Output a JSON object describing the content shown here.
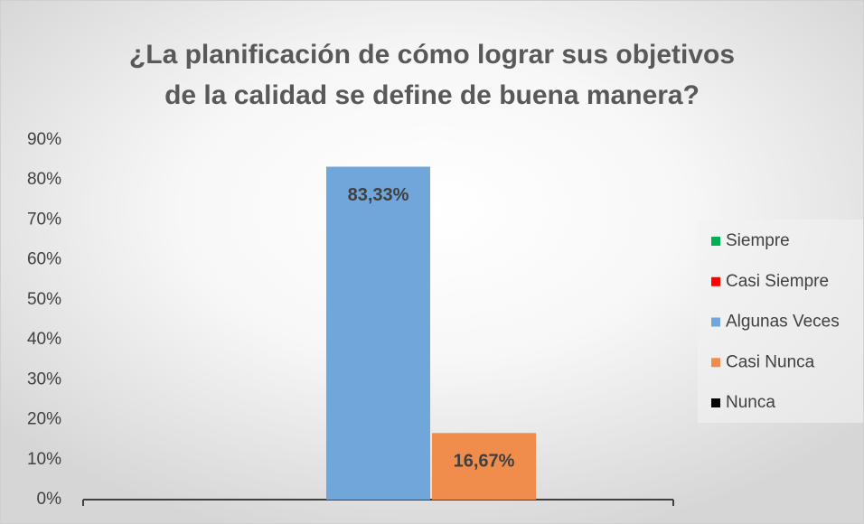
{
  "chart_data": {
    "type": "bar",
    "title": "¿La planificación de cómo lograr sus objetivos de la calidad se define de buena manera?",
    "categories": [
      null
    ],
    "series": [
      {
        "name": "Siempre",
        "color": "#00b050",
        "values": [
          0
        ]
      },
      {
        "name": "Casi Siempre",
        "color": "#ff0000",
        "values": [
          0
        ]
      },
      {
        "name": "Algunas Veces",
        "color": "#71a6db",
        "values": [
          83.33
        ],
        "value_labels": [
          "83,33%"
        ]
      },
      {
        "name": "Casi Nunca",
        "color": "#f08d4c",
        "values": [
          16.67
        ],
        "value_labels": [
          "16,67%"
        ]
      },
      {
        "name": "Nunca",
        "color": "#000000",
        "values": [
          0
        ]
      }
    ],
    "ylim": [
      0,
      90
    ],
    "yticks": [
      {
        "value": 0,
        "label": "0%"
      },
      {
        "value": 10,
        "label": "10%"
      },
      {
        "value": 20,
        "label": "20%"
      },
      {
        "value": 30,
        "label": "30%"
      },
      {
        "value": 40,
        "label": "40%"
      },
      {
        "value": 50,
        "label": "50%"
      },
      {
        "value": 60,
        "label": "60%"
      },
      {
        "value": 70,
        "label": "70%"
      },
      {
        "value": 80,
        "label": "80%"
      },
      {
        "value": 90,
        "label": "90%"
      }
    ],
    "grid": false,
    "legend": "right"
  }
}
